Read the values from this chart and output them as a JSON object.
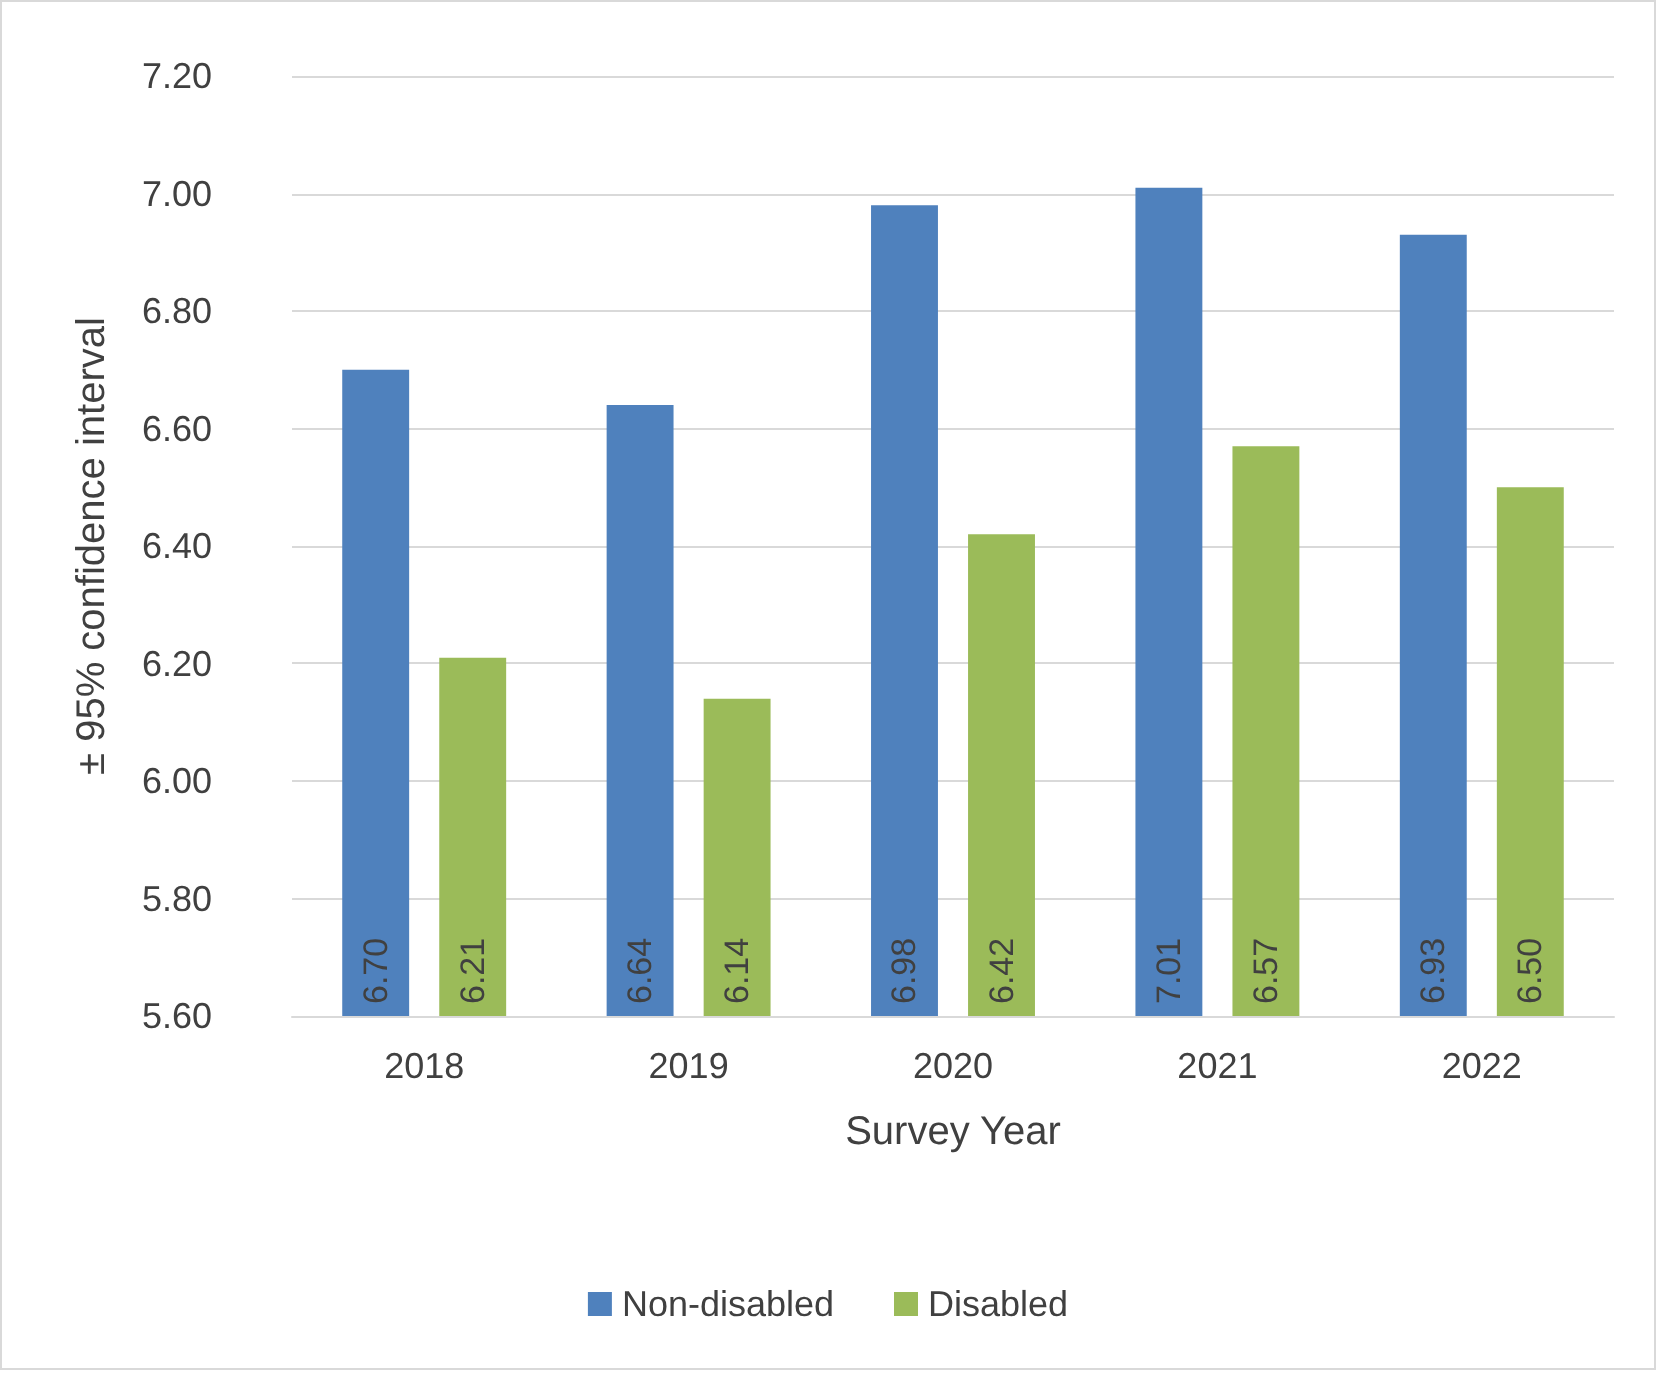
{
  "chart_data": {
    "type": "bar",
    "xlabel": "Survey Year",
    "ylabel": "± 95% confidence interval",
    "categories": [
      "2018",
      "2019",
      "2020",
      "2021",
      "2022"
    ],
    "series": [
      {
        "name": "Non-disabled",
        "color": "#4f81bd",
        "values": [
          6.7,
          6.64,
          6.98,
          7.01,
          6.93
        ],
        "value_labels": [
          "6.70",
          "6.64",
          "6.98",
          "7.01",
          "6.93"
        ]
      },
      {
        "name": "Disabled",
        "color": "#9bbb59",
        "values": [
          6.21,
          6.14,
          6.42,
          6.57,
          6.5
        ],
        "value_labels": [
          "6.21",
          "6.14",
          "6.42",
          "6.57",
          "6.50"
        ]
      }
    ],
    "ylim": [
      5.6,
      7.2
    ],
    "yticks": [
      {
        "value": 5.6,
        "label": "5.60"
      },
      {
        "value": 5.8,
        "label": "5.80"
      },
      {
        "value": 6.0,
        "label": "6.00"
      },
      {
        "value": 6.2,
        "label": "6.20"
      },
      {
        "value": 6.4,
        "label": "6.40"
      },
      {
        "value": 6.6,
        "label": "6.60"
      },
      {
        "value": 6.8,
        "label": "6.80"
      },
      {
        "value": 7.0,
        "label": "7.00"
      },
      {
        "value": 7.2,
        "label": "7.20"
      }
    ],
    "grid": "y",
    "legend": "bottom"
  }
}
